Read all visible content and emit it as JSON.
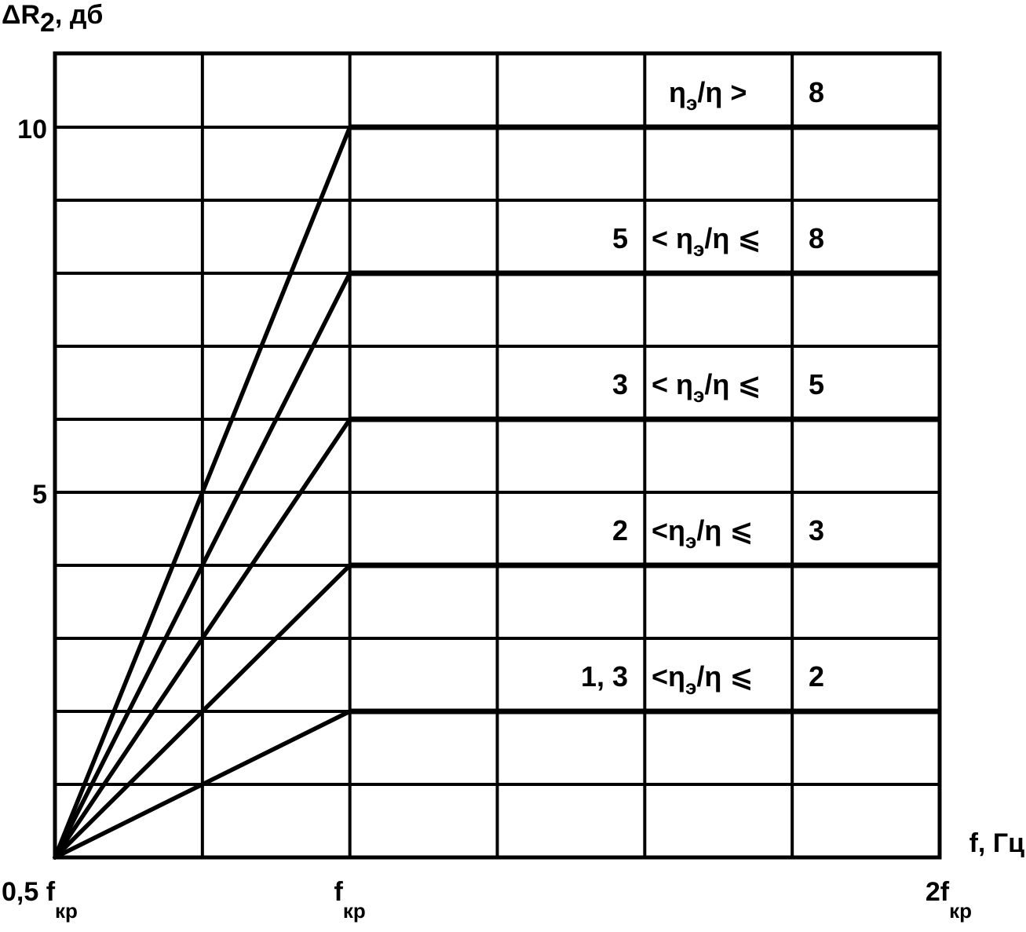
{
  "chart_data": {
    "type": "line",
    "ylabel": {
      "main": "ΔR",
      "sub": "2",
      "rest": ", дб"
    },
    "xlabel": "f, Гц",
    "x_ticks": [
      {
        "value": 0.5,
        "main": "0,5 f",
        "sub": "кр"
      },
      {
        "value": 1.0,
        "main": "f",
        "sub": "кр"
      },
      {
        "value": 2.0,
        "main": "2f",
        "sub": "кр"
      }
    ],
    "y_ticks": [
      {
        "value": 10,
        "label": "10"
      },
      {
        "value": 5,
        "label": "5"
      }
    ],
    "ylim": [
      0,
      11
    ],
    "x_domain": "0.5·f_кр … 2·f_кр, linear in f/f_кр",
    "grid": true,
    "grid_x_step": 0.25,
    "grid_y_step": 1,
    "series": [
      {
        "label": {
          "lo": "",
          "mid": "η",
          "sub": "э",
          "rest": "/η >",
          "hi": "8"
        },
        "points": [
          [
            0.5,
            0
          ],
          [
            1.0,
            10
          ],
          [
            2.0,
            10
          ]
        ]
      },
      {
        "label": {
          "lo": "5",
          "mid": "< η",
          "sub": "э",
          "rest": "/η ⩽",
          "hi": "8"
        },
        "points": [
          [
            0.5,
            0
          ],
          [
            1.0,
            8
          ],
          [
            2.0,
            8
          ]
        ]
      },
      {
        "label": {
          "lo": "3",
          "mid": "< η",
          "sub": "э",
          "rest": "/η ⩽",
          "hi": "5"
        },
        "points": [
          [
            0.5,
            0
          ],
          [
            1.0,
            6
          ],
          [
            2.0,
            6
          ]
        ]
      },
      {
        "label": {
          "lo": "2",
          "mid": "<η",
          "sub": "э",
          "rest": "/η ⩽",
          "hi": "3"
        },
        "points": [
          [
            0.5,
            0
          ],
          [
            1.0,
            4
          ],
          [
            2.0,
            4
          ]
        ]
      },
      {
        "label": {
          "lo": "1, 3",
          "mid": "<η",
          "sub": "э",
          "rest": "/η ⩽",
          "hi": "2"
        },
        "points": [
          [
            0.5,
            0
          ],
          [
            1.0,
            2
          ],
          [
            2.0,
            2
          ]
        ]
      }
    ]
  }
}
